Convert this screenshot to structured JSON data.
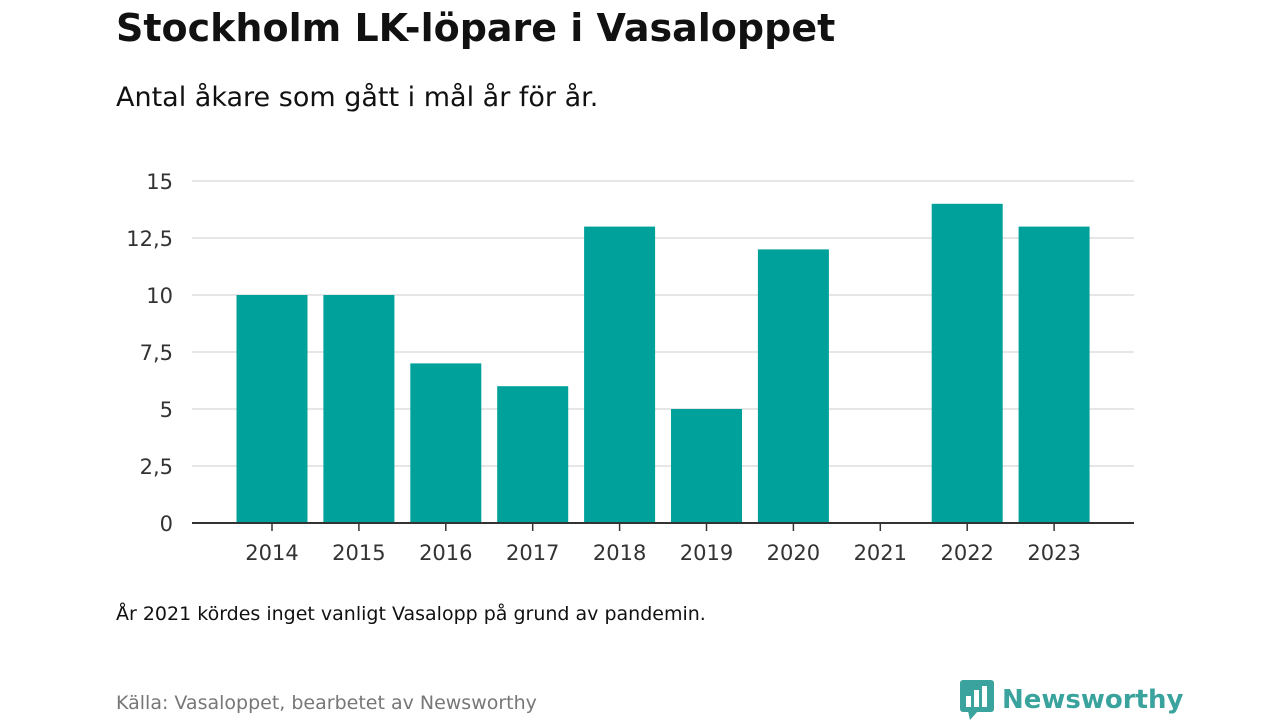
{
  "header": {
    "title": "Stockholm LK-löpare i Vasaloppet",
    "subtitle": "Antal åkare som gått i mål år för år."
  },
  "chart_data": {
    "type": "bar",
    "title": "Stockholm LK-löpare i Vasaloppet",
    "subtitle": "Antal åkare som gått i mål år för år.",
    "categories": [
      "2014",
      "2015",
      "2016",
      "2017",
      "2018",
      "2019",
      "2020",
      "2021",
      "2022",
      "2023"
    ],
    "values": [
      10,
      10,
      7,
      6,
      13,
      5,
      12,
      0,
      14,
      13
    ],
    "ylim": [
      0,
      15
    ],
    "yticks": [
      0,
      2.5,
      5,
      7.5,
      10,
      12.5,
      15
    ],
    "ytick_labels": [
      "0",
      "2,5",
      "5",
      "7,5",
      "10",
      "12,5",
      "15"
    ],
    "grid": true,
    "bar_color": "#00a19a",
    "xlabel": "",
    "ylabel": ""
  },
  "footer": {
    "note": "År 2021 kördes inget vanligt Vasalopp på grund av pandemin.",
    "source": "Källa: Vasaloppet, bearbetet av Newsworthy",
    "brand": "Newsworthy",
    "brand_icon": "newsworthy-logo-icon",
    "brand_color": "#3aa39d"
  }
}
